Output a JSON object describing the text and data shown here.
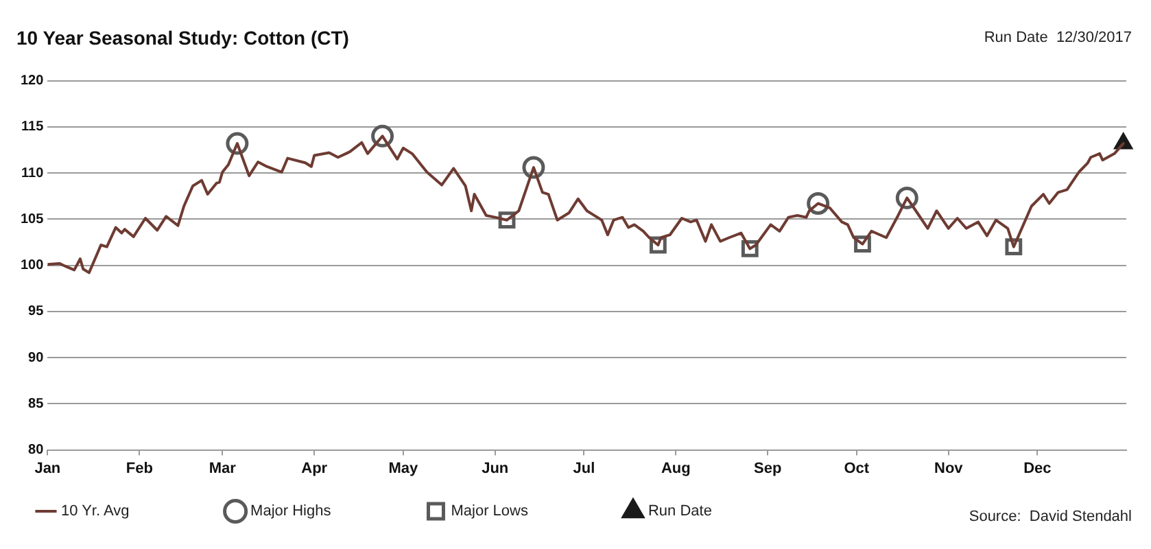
{
  "chart_data": {
    "type": "line",
    "title": "10 Year Seasonal Study: Cotton (CT)",
    "annotations": [
      "Run Date  12/30/2017",
      "Source:  David Stendahl"
    ],
    "xlim": [
      "--01-01",
      "--12-31"
    ],
    "xticks": [
      {
        "value": "--01-01",
        "label": "Jan"
      },
      {
        "value": "--02-01",
        "label": "Feb"
      },
      {
        "value": "--03-01",
        "label": "Mar"
      },
      {
        "value": "--04-01",
        "label": "Apr"
      },
      {
        "value": "--05-01",
        "label": "May"
      },
      {
        "value": "--06-01",
        "label": "Jun"
      },
      {
        "value": "--07-01",
        "label": "Jul"
      },
      {
        "value": "--08-01",
        "label": "Aug"
      },
      {
        "value": "--09-01",
        "label": "Sep"
      },
      {
        "value": "--10-01",
        "label": "Oct"
      },
      {
        "value": "--11-01",
        "label": "Nov"
      },
      {
        "value": "--12-01",
        "label": "Dec"
      }
    ],
    "ylim": [
      80,
      120
    ],
    "yticks": [
      80,
      85,
      90,
      95,
      100,
      105,
      110,
      115,
      120
    ],
    "grid": "y",
    "legend": "bottom",
    "series": [
      {
        "name": "10 Yr. Avg",
        "type": "line",
        "marker": "none",
        "color": "#6e3b32",
        "x": [
          "--01-01",
          "--01-05",
          "--01-07",
          "--01-10",
          "--01-12",
          "--01-13",
          "--01-15",
          "--01-17",
          "--01-19",
          "--01-21",
          "--01-24",
          "--01-26",
          "--01-27",
          "--01-30",
          "--02-03",
          "--02-07",
          "--02-10",
          "--02-14",
          "--02-16",
          "--02-19",
          "--02-22",
          "--02-24",
          "--02-27",
          "--02-28",
          "--03-01",
          "--03-03",
          "--03-06",
          "--03-10",
          "--03-13",
          "--03-16",
          "--03-21",
          "--03-23",
          "--03-29",
          "--03-31",
          "--04-01",
          "--04-06",
          "--04-09",
          "--04-13",
          "--04-17",
          "--04-19",
          "--04-24",
          "--04-29",
          "--05-01",
          "--05-04",
          "--05-09",
          "--05-14",
          "--05-18",
          "--05-22",
          "--05-24",
          "--05-25",
          "--05-29",
          "--06-01",
          "--06-05",
          "--06-09",
          "--06-14",
          "--06-17",
          "--06-19",
          "--06-22",
          "--06-26",
          "--06-29",
          "--07-02",
          "--07-04",
          "--07-07",
          "--07-09",
          "--07-11",
          "--07-14",
          "--07-16",
          "--07-18",
          "--07-21",
          "--07-23",
          "--07-26",
          "--07-27",
          "--07-30",
          "--08-03",
          "--08-06",
          "--08-08",
          "--08-11",
          "--08-13",
          "--08-16",
          "--08-19",
          "--08-23",
          "--08-26",
          "--08-28",
          "--09-02",
          "--09-05",
          "--09-08",
          "--09-11",
          "--09-14",
          "--09-15",
          "--09-18",
          "--09-22",
          "--09-26",
          "--09-28",
          "--09-30",
          "--10-03",
          "--10-06",
          "--10-11",
          "--10-15",
          "--10-18",
          "--10-21",
          "--10-25",
          "--10-28",
          "--11-01",
          "--11-04",
          "--11-07",
          "--11-11",
          "--11-14",
          "--11-17",
          "--11-21",
          "--11-23",
          "--11-26",
          "--11-29",
          "--12-03",
          "--12-05",
          "--12-08",
          "--12-11",
          "--12-15",
          "--12-18",
          "--12-19",
          "--12-22",
          "--12-23",
          "--12-27",
          "--12-30"
        ],
        "values": [
          100.1,
          100.2,
          99.9,
          99.5,
          100.7,
          99.6,
          99.2,
          100.7,
          102.2,
          102,
          104.1,
          103.5,
          103.9,
          103.1,
          105.1,
          103.8,
          105.3,
          104.3,
          106.4,
          108.6,
          109.2,
          107.7,
          108.9,
          109,
          110.1,
          110.9,
          113.2,
          109.7,
          111.2,
          110.7,
          110.1,
          111.6,
          111.1,
          110.7,
          111.9,
          112.2,
          111.7,
          112.3,
          113.3,
          112.1,
          114,
          111.5,
          112.7,
          112.1,
          110.1,
          108.7,
          110.5,
          108.6,
          105.9,
          107.7,
          105.4,
          105.2,
          104.9,
          105.9,
          110.6,
          107.9,
          107.7,
          104.9,
          105.7,
          107.2,
          105.9,
          105.5,
          104.9,
          103.3,
          104.9,
          105.2,
          104.1,
          104.4,
          103.7,
          103,
          102.2,
          103,
          103.3,
          105.1,
          104.7,
          104.9,
          102.6,
          104.4,
          102.6,
          103,
          103.5,
          101.8,
          102.2,
          104.4,
          103.7,
          105.2,
          105.4,
          105.2,
          105.9,
          106.7,
          106.2,
          104.7,
          104.4,
          103,
          102.3,
          103.7,
          103,
          105.4,
          107.3,
          105.9,
          104,
          105.9,
          104,
          105.1,
          104,
          104.7,
          103.2,
          104.9,
          104,
          102,
          104.2,
          106.4,
          107.7,
          106.7,
          107.9,
          108.2,
          110.1,
          111.1,
          111.7,
          112.1,
          111.4,
          112.1,
          113.2
        ]
      },
      {
        "name": "Major Highs",
        "type": "scatter",
        "marker": "circle",
        "color": "#5a5a5a",
        "x": [
          "--03-06",
          "--04-24",
          "--06-14",
          "--09-18",
          "--10-18"
        ],
        "values": [
          113.2,
          114,
          110.6,
          106.7,
          107.3
        ]
      },
      {
        "name": "Major Lows",
        "type": "scatter",
        "marker": "square",
        "color": "#5a5a5a",
        "x": [
          "--06-05",
          "--07-26",
          "--08-26",
          "--10-03",
          "--11-23"
        ],
        "values": [
          104.9,
          102.2,
          101.8,
          102.3,
          102
        ]
      },
      {
        "name": "Run Date",
        "type": "scatter",
        "marker": "triangle",
        "color": "#1a1a1a",
        "x": [
          "--12-30"
        ],
        "values": [
          113.2
        ]
      }
    ]
  }
}
